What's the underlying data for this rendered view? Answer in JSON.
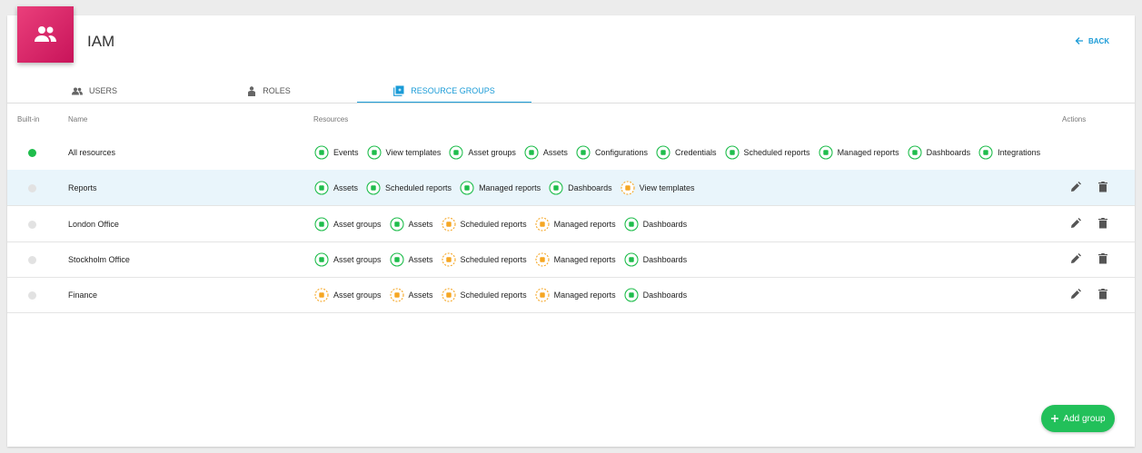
{
  "header": {
    "title": "IAM",
    "back": "BACK"
  },
  "tabs": [
    {
      "label": "USERS",
      "active": false
    },
    {
      "label": "ROLES",
      "active": false
    },
    {
      "label": "RESOURCE GROUPS",
      "active": true
    }
  ],
  "table": {
    "columns": [
      "Built-in",
      "Name",
      "Resources",
      "Actions"
    ],
    "rows": [
      {
        "built_in": true,
        "name": "All resources",
        "resources": [
          {
            "name": "Events",
            "access": "full"
          },
          {
            "name": "View templates",
            "access": "full"
          },
          {
            "name": "Asset groups",
            "access": "full"
          },
          {
            "name": "Assets",
            "access": "full"
          },
          {
            "name": "Configurations",
            "access": "full"
          },
          {
            "name": "Credentials",
            "access": "full"
          },
          {
            "name": "Scheduled reports",
            "access": "full"
          },
          {
            "name": "Managed reports",
            "access": "full"
          },
          {
            "name": "Dashboards",
            "access": "full"
          },
          {
            "name": "Integrations",
            "access": "full"
          }
        ]
      },
      {
        "built_in": false,
        "highlighted": true,
        "name": "Reports",
        "resources": [
          {
            "name": "Assets",
            "access": "full"
          },
          {
            "name": "Scheduled reports",
            "access": "full"
          },
          {
            "name": "Managed reports",
            "access": "full"
          },
          {
            "name": "Dashboards",
            "access": "full"
          },
          {
            "name": "View templates",
            "access": "partial"
          }
        ]
      },
      {
        "built_in": false,
        "name": "London Office",
        "resources": [
          {
            "name": "Asset groups",
            "access": "full"
          },
          {
            "name": "Assets",
            "access": "full"
          },
          {
            "name": "Scheduled reports",
            "access": "partial"
          },
          {
            "name": "Managed reports",
            "access": "partial"
          },
          {
            "name": "Dashboards",
            "access": "full"
          }
        ]
      },
      {
        "built_in": false,
        "name": "Stockholm Office",
        "resources": [
          {
            "name": "Asset groups",
            "access": "full"
          },
          {
            "name": "Assets",
            "access": "full"
          },
          {
            "name": "Scheduled reports",
            "access": "partial"
          },
          {
            "name": "Managed reports",
            "access": "partial"
          },
          {
            "name": "Dashboards",
            "access": "full"
          }
        ]
      },
      {
        "built_in": false,
        "name": "Finance",
        "resources": [
          {
            "name": "Asset groups",
            "access": "partial"
          },
          {
            "name": "Assets",
            "access": "partial"
          },
          {
            "name": "Scheduled reports",
            "access": "partial"
          },
          {
            "name": "Managed reports",
            "access": "partial"
          },
          {
            "name": "Dashboards",
            "access": "full"
          }
        ]
      }
    ]
  },
  "add_button": "Add group"
}
